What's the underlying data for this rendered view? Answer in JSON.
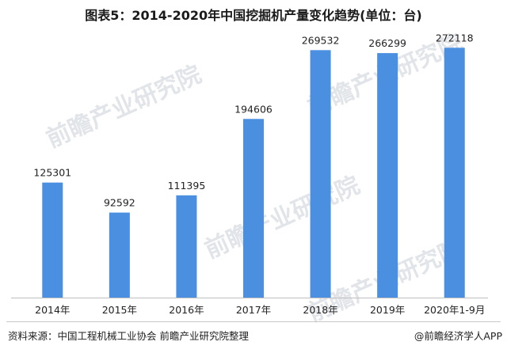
{
  "title": "图表5：2014-2020年中国挖掘机产量变化趋势(单位：台)",
  "watermark_text": "前瞻产业研究院",
  "source": "资料来源：中国工程机械工业协会 前瞻产业研究院整理",
  "brand": "@前瞻经济学人APP",
  "colors": {
    "bar": "#4a8fe0",
    "text": "#222222",
    "axis": "#bfbfbf",
    "watermark": "#c8ced6"
  },
  "chart_data": {
    "type": "bar",
    "categories": [
      "2014年",
      "2015年",
      "2016年",
      "2017年",
      "2018年",
      "2019年",
      "2020年1-9月"
    ],
    "values": [
      125301,
      92592,
      111395,
      194606,
      269532,
      266299,
      272118
    ],
    "title": "图表5：2014-2020年中国挖掘机产量变化趋势(单位：台)",
    "xlabel": "",
    "ylabel": "",
    "ylim": [
      0,
      300000
    ],
    "grid": false,
    "data_labels": true
  }
}
